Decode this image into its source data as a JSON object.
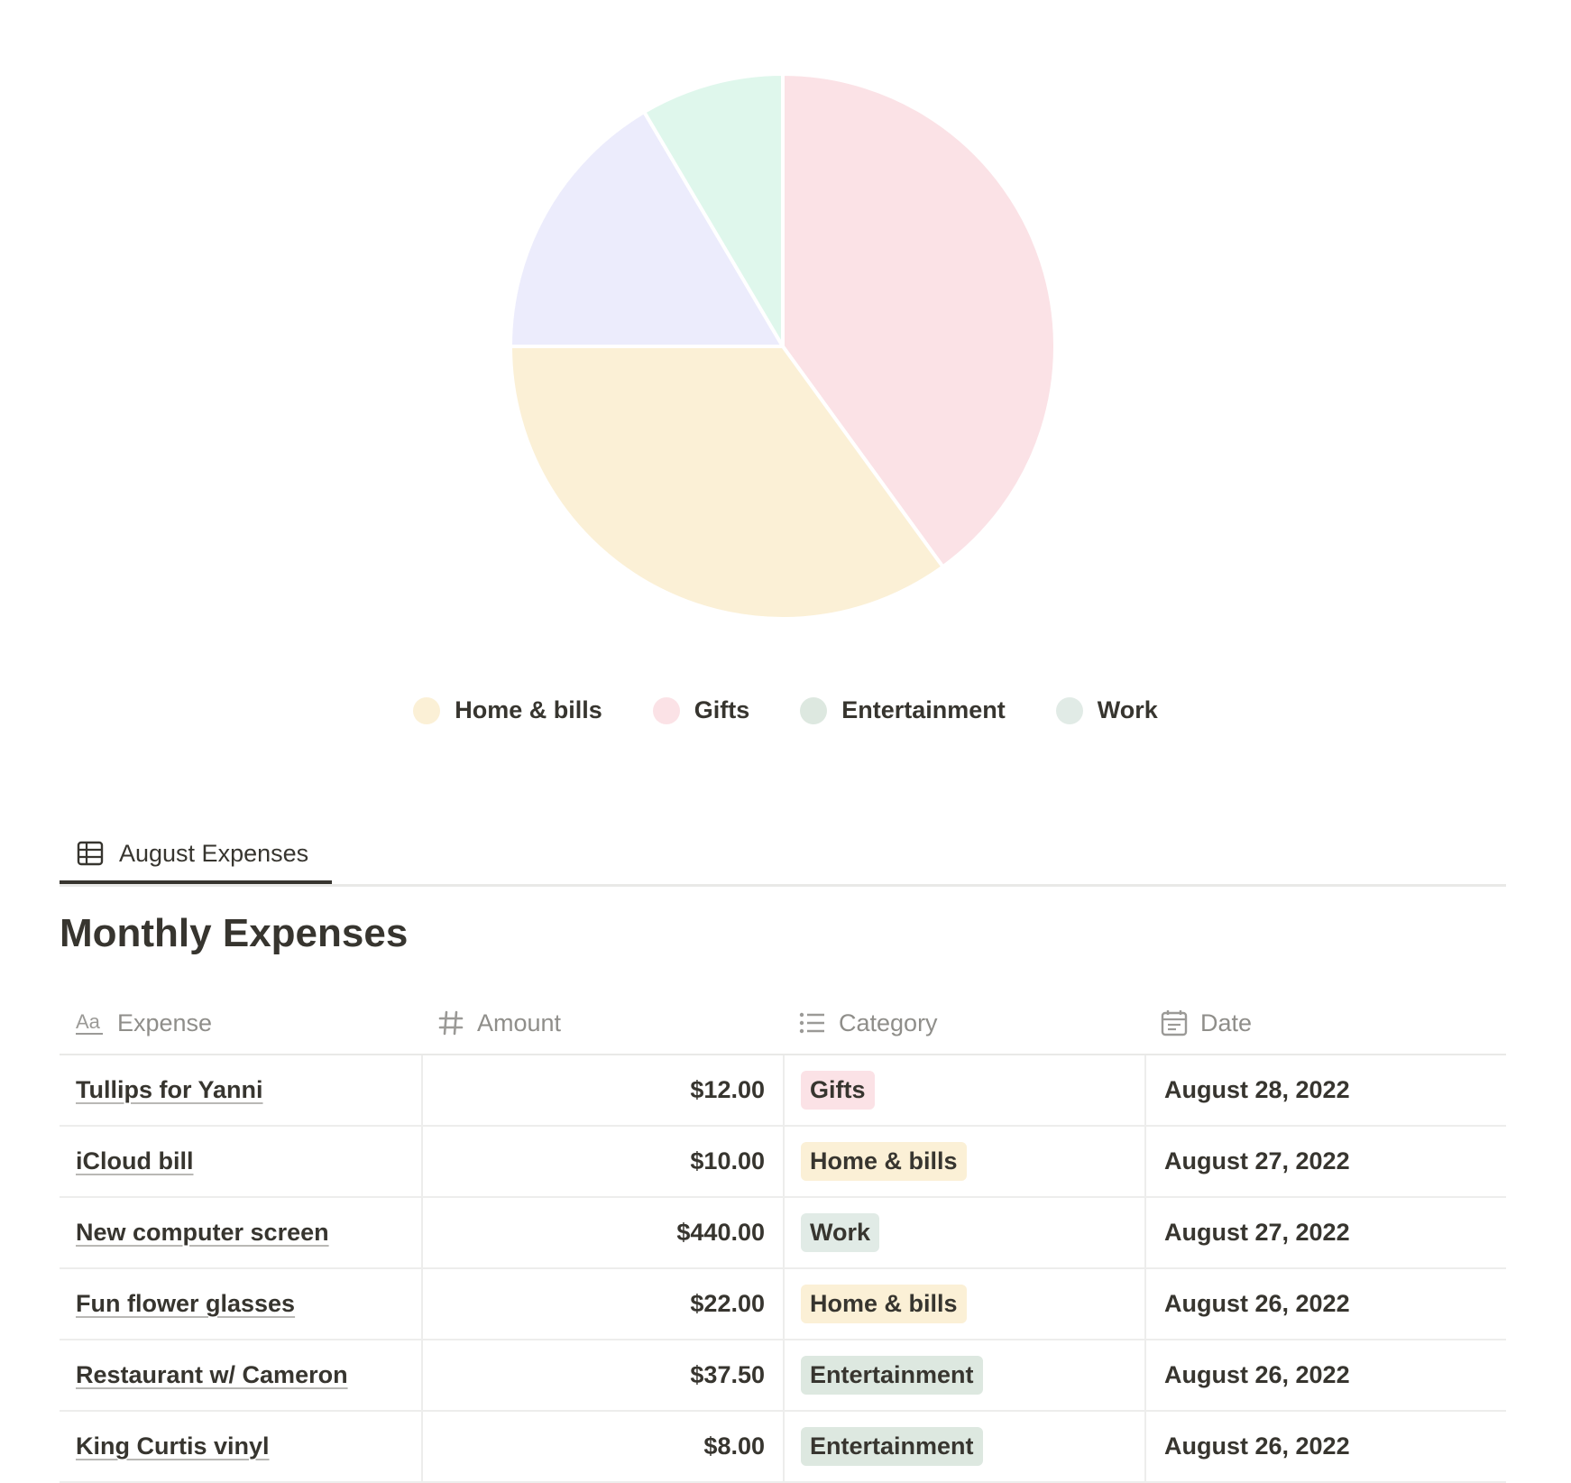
{
  "colors": {
    "home_bills": "#fbf0d6",
    "gifts": "#fbe2e6",
    "entertainment": "#dde8e0",
    "work": "#e1ebe6",
    "pie_work": "#dff7ec",
    "pie_other": "#ececfc"
  },
  "chart_data": {
    "type": "pie",
    "title": "",
    "slices": [
      {
        "label": "Gifts",
        "value": 40,
        "color": "#fbe2e6"
      },
      {
        "label": "Home & bills",
        "value": 35,
        "color": "#fbf0d6"
      },
      {
        "label": "Entertainment",
        "value": 16.5,
        "color": "#ececfc"
      },
      {
        "label": "Work",
        "value": 8.5,
        "color": "#dff7ec"
      }
    ],
    "legend": [
      {
        "label": "Home & bills",
        "color": "#fbf0d6"
      },
      {
        "label": "Gifts",
        "color": "#fbe2e6"
      },
      {
        "label": "Entertainment",
        "color": "#dde8e0"
      },
      {
        "label": "Work",
        "color": "#e1ebe6"
      }
    ],
    "legend_position": "bottom"
  },
  "tab": {
    "label": "August Expenses"
  },
  "title": "Monthly Expenses",
  "table": {
    "headers": {
      "expense": "Expense",
      "amount": "Amount",
      "category": "Category",
      "date": "Date"
    },
    "rows": [
      {
        "expense": "Tullips for Yanni",
        "amount": "$12.00",
        "category": "Gifts",
        "cat_color": "#fbe2e6",
        "date": "August 28, 2022"
      },
      {
        "expense": "iCloud bill",
        "amount": "$10.00",
        "category": "Home & bills",
        "cat_color": "#fbf0d6",
        "date": "August 27, 2022"
      },
      {
        "expense": "New computer screen",
        "amount": "$440.00",
        "category": "Work",
        "cat_color": "#e1ebe6",
        "date": "August 27, 2022"
      },
      {
        "expense": "Fun flower glasses",
        "amount": "$22.00",
        "category": "Home & bills",
        "cat_color": "#fbf0d6",
        "date": "August 26, 2022"
      },
      {
        "expense": "Restaurant w/ Cameron",
        "amount": "$37.50",
        "category": "Entertainment",
        "cat_color": "#dde8e0",
        "date": "August 26, 2022"
      },
      {
        "expense": "King Curtis vinyl",
        "amount": "$8.00",
        "category": "Entertainment",
        "cat_color": "#dde8e0",
        "date": "August 26, 2022"
      }
    ]
  }
}
